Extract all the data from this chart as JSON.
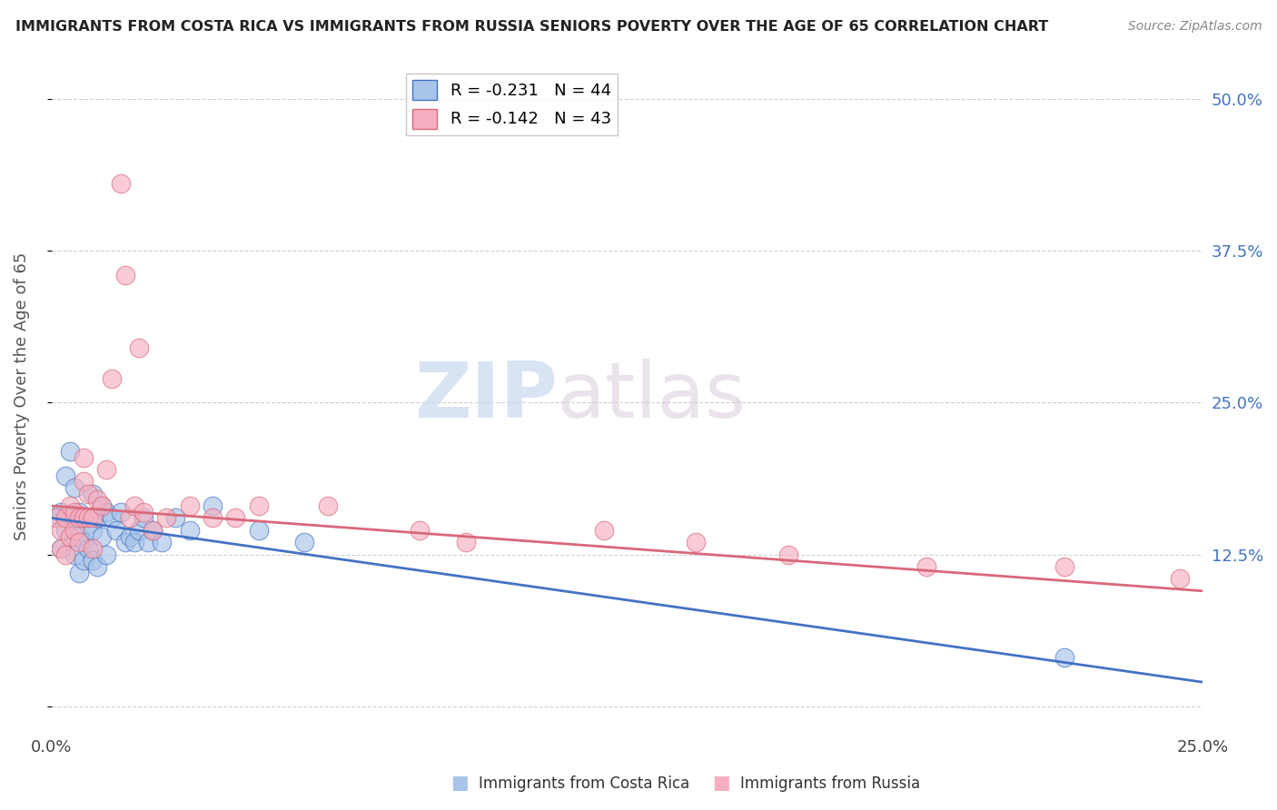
{
  "title": "IMMIGRANTS FROM COSTA RICA VS IMMIGRANTS FROM RUSSIA SENIORS POVERTY OVER THE AGE OF 65 CORRELATION CHART",
  "source": "Source: ZipAtlas.com",
  "ylabel": "Seniors Poverty Over the Age of 65",
  "y_ticks": [
    0.0,
    0.125,
    0.25,
    0.375,
    0.5
  ],
  "y_tick_labels_right": [
    "",
    "12.5%",
    "25.0%",
    "37.5%",
    "50.0%"
  ],
  "xlim": [
    0.0,
    0.25
  ],
  "ylim": [
    -0.02,
    0.53
  ],
  "costa_rica_R": -0.231,
  "costa_rica_N": 44,
  "russia_R": -0.142,
  "russia_N": 43,
  "costa_rica_color": "#a8c4e8",
  "russia_color": "#f5afc0",
  "costa_rica_line_color": "#4472c4",
  "russia_line_color": "#d9687a",
  "costa_rica_x": [
    0.001,
    0.002,
    0.002,
    0.003,
    0.003,
    0.004,
    0.004,
    0.005,
    0.005,
    0.005,
    0.006,
    0.006,
    0.006,
    0.007,
    0.007,
    0.007,
    0.008,
    0.008,
    0.009,
    0.009,
    0.009,
    0.01,
    0.01,
    0.011,
    0.011,
    0.012,
    0.012,
    0.013,
    0.014,
    0.015,
    0.016,
    0.017,
    0.018,
    0.019,
    0.02,
    0.021,
    0.022,
    0.024,
    0.027,
    0.03,
    0.035,
    0.045,
    0.055,
    0.22
  ],
  "costa_rica_y": [
    0.155,
    0.16,
    0.13,
    0.19,
    0.145,
    0.21,
    0.155,
    0.18,
    0.155,
    0.125,
    0.16,
    0.14,
    0.11,
    0.155,
    0.135,
    0.12,
    0.15,
    0.13,
    0.175,
    0.145,
    0.12,
    0.155,
    0.115,
    0.165,
    0.14,
    0.16,
    0.125,
    0.155,
    0.145,
    0.16,
    0.135,
    0.14,
    0.135,
    0.145,
    0.155,
    0.135,
    0.145,
    0.135,
    0.155,
    0.145,
    0.165,
    0.145,
    0.135,
    0.04
  ],
  "russia_x": [
    0.001,
    0.002,
    0.002,
    0.003,
    0.003,
    0.004,
    0.004,
    0.005,
    0.005,
    0.006,
    0.006,
    0.007,
    0.007,
    0.007,
    0.008,
    0.008,
    0.009,
    0.009,
    0.01,
    0.011,
    0.012,
    0.013,
    0.015,
    0.016,
    0.017,
    0.018,
    0.019,
    0.02,
    0.022,
    0.025,
    0.03,
    0.035,
    0.04,
    0.045,
    0.06,
    0.08,
    0.09,
    0.12,
    0.14,
    0.16,
    0.19,
    0.22,
    0.245
  ],
  "russia_y": [
    0.155,
    0.145,
    0.13,
    0.155,
    0.125,
    0.165,
    0.14,
    0.16,
    0.145,
    0.155,
    0.135,
    0.205,
    0.185,
    0.155,
    0.175,
    0.155,
    0.155,
    0.13,
    0.17,
    0.165,
    0.195,
    0.27,
    0.43,
    0.355,
    0.155,
    0.165,
    0.295,
    0.16,
    0.145,
    0.155,
    0.165,
    0.155,
    0.155,
    0.165,
    0.165,
    0.145,
    0.135,
    0.145,
    0.135,
    0.125,
    0.115,
    0.115,
    0.105
  ],
  "background_color": "#ffffff",
  "grid_color": "#d0d0d0",
  "watermark_zip": "ZIP",
  "watermark_atlas": "atlas"
}
